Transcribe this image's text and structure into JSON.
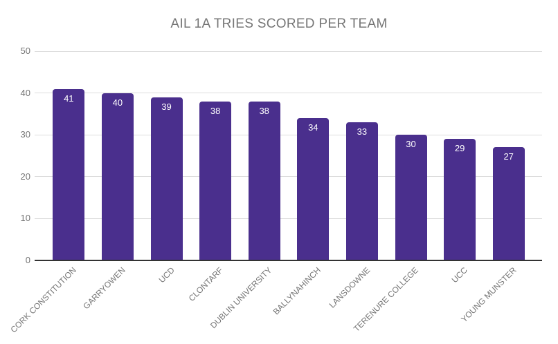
{
  "chart_data": {
    "type": "bar",
    "title": "AIL 1A TRIES SCORED PER TEAM",
    "categories": [
      "CORK CONSTITUTION",
      "GARRYOWEN",
      "UCD",
      "CLONTARF",
      "DUBLIN UNIVERSITY",
      "BALLYNAHINCH",
      "LANSDOWNE",
      "TERENURE COLLEGE",
      "UCC",
      "YOUNG MUNSTER"
    ],
    "values": [
      41,
      40,
      39,
      38,
      38,
      34,
      33,
      30,
      29,
      27
    ],
    "bar_labels": [
      41,
      40,
      39,
      38,
      38,
      34,
      33,
      30,
      29,
      27
    ],
    "xlabel": "",
    "ylabel": "",
    "ylim": [
      0,
      50
    ],
    "yticks": [
      0,
      10,
      20,
      30,
      40,
      50
    ],
    "grid": true,
    "legend": "none",
    "colors": {
      "bar": "#4A2F8D",
      "bar_label": "#FFFFFF",
      "grid": "#DCDCDC",
      "baseline": "#333333",
      "title": "#757575",
      "axis_label": "#757575",
      "background": "#FFFFFF"
    }
  }
}
